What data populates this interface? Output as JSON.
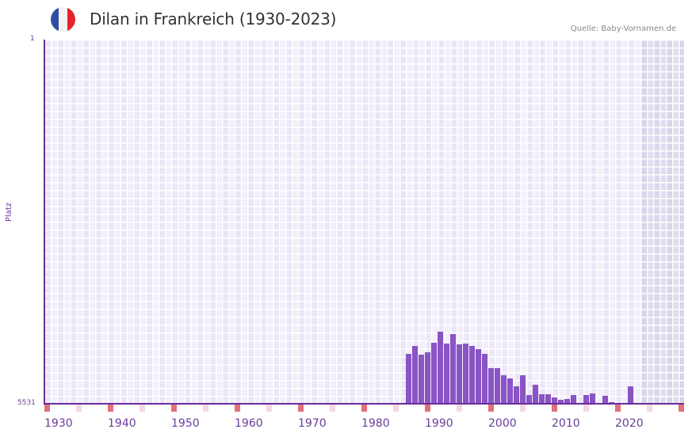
{
  "header": {
    "title": "Dilan in Frankreich (1930-2023)",
    "source": "Quelle: Baby-Vornamen.de",
    "flag_colors": [
      "#2c4fa3",
      "#f2f2f2",
      "#e8222c"
    ]
  },
  "axis": {
    "y_title": "Platz",
    "y_top_label": "1",
    "y_bottom_label": "5531",
    "x_labels": [
      "1930",
      "1940",
      "1950",
      "1960",
      "1970",
      "1980",
      "1990",
      "2000",
      "2010",
      "2020"
    ]
  },
  "colors": {
    "bar": "#8a54c5",
    "axis": "#6a2d9b",
    "decade_marker": "#e0707a",
    "half_decade_marker": "#f5d7df",
    "plot_bg": "#f2effb"
  },
  "chart_data": {
    "type": "bar",
    "title": "Dilan in Frankreich (1930-2023)",
    "xlabel": "",
    "ylabel": "Platz",
    "y_inverted": true,
    "ylim": [
      5531,
      1
    ],
    "x_range": [
      1930,
      2030
    ],
    "shaded_future_from": 2024,
    "grid": true,
    "x": [
      1987,
      1988,
      1989,
      1990,
      1991,
      1992,
      1993,
      1994,
      1995,
      1996,
      1997,
      1998,
      1999,
      2000,
      2001,
      2002,
      2003,
      2004,
      2005,
      2006,
      2007,
      2008,
      2009,
      2010,
      2011,
      2012,
      2013,
      2015,
      2016,
      2018,
      2019,
      2022
    ],
    "values": [
      4773,
      4653,
      4785,
      4749,
      4605,
      4437,
      4617,
      4473,
      4629,
      4617,
      4653,
      4701,
      4773,
      4989,
      4989,
      5097,
      5145,
      5266,
      5097,
      5398,
      5242,
      5386,
      5386,
      5434,
      5470,
      5458,
      5398,
      5398,
      5374,
      5410,
      5579,
      5266
    ],
    "note": "Ranks estimated from bar heights (rank 1 at top, 5531 at baseline); years without bars had no ranking"
  }
}
